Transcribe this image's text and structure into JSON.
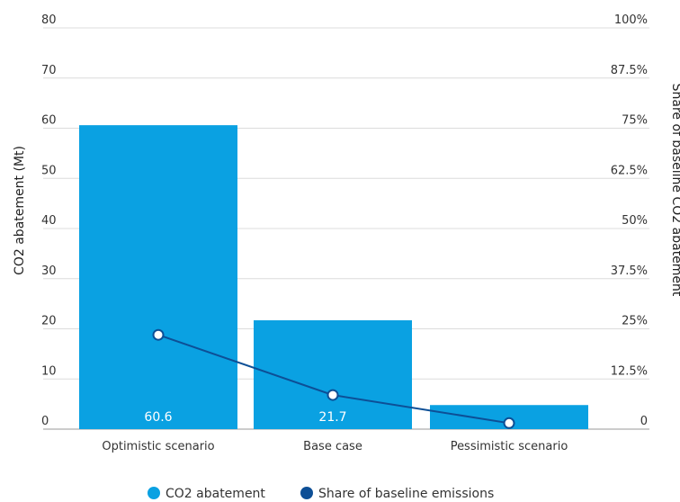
{
  "chart_data": {
    "type": "bar",
    "categories": [
      "Optimistic scenario",
      "Base case",
      "Pessimistic scenario"
    ],
    "series": [
      {
        "name": "CO2 abatement",
        "type": "bar",
        "axis": "left",
        "values": [
          60.6,
          21.7,
          4.8
        ],
        "data_labels": [
          "60.6",
          "21.7",
          ""
        ],
        "color": "#0aa1e2"
      },
      {
        "name": "Share of baseline emissions",
        "type": "line",
        "axis": "right",
        "values": [
          23.5,
          8.5,
          1.5
        ],
        "color": "#0d4f96"
      }
    ],
    "ylabel": "CO2 abatement (Mt)",
    "ylabel_right": "Share of baseline CO2 abatement",
    "ylim": [
      0,
      80
    ],
    "ylim_right": [
      0,
      100
    ],
    "yticks": [
      "0",
      "10",
      "20",
      "30",
      "40",
      "50",
      "60",
      "70",
      "80"
    ],
    "yticks_right": [
      "0",
      "12.5%",
      "25%",
      "37.5%",
      "50%",
      "62.5%",
      "75%",
      "87.5%",
      "100%"
    ],
    "grid": true,
    "legend_position": "bottom"
  }
}
